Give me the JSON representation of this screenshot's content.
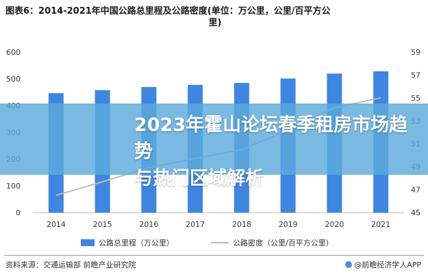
{
  "title": {
    "line1": "图表6：2014-2021年中国公路总里程及公路密度(单位：万公里，公里/百平方公",
    "line2": "里)"
  },
  "banner": {
    "line1": "2023年霍山论坛春季租房市场趋势",
    "line2": "与热门区域解析"
  },
  "footer": {
    "source": "资料来源：交通运输部 前瞻产业研究院",
    "brand": "@前瞻经济学人APP"
  },
  "colors": {
    "bar": "#3f86e0",
    "line": "#bbbbbb",
    "banner": "#5baadc"
  },
  "chart_data": {
    "type": "bar",
    "categories": [
      "2014",
      "2015",
      "2016",
      "2017",
      "2018",
      "2019",
      "2020",
      "2021"
    ],
    "series": [
      {
        "name": "公路总里程（万公里）",
        "type": "bar",
        "axis": "left",
        "values": [
          446.39,
          457.73,
          469.63,
          477.35,
          484.65,
          501.25,
          519.81,
          528.07
        ]
      },
      {
        "name": "公路密度（公里/百平方公里）",
        "type": "line",
        "axis": "right",
        "values": [
          46.5,
          47.68,
          48.92,
          49.72,
          50.48,
          52.21,
          54.15,
          55.01
        ]
      }
    ],
    "ylim_left": [
      0,
      600
    ],
    "yticks_left": [
      "0",
      "100",
      "200",
      "300",
      "400",
      "500",
      "600"
    ],
    "ylim_right": [
      45,
      59
    ],
    "yticks_right": [
      "45",
      "47",
      "49",
      "51",
      "53",
      "55",
      "57",
      "59"
    ],
    "legend_position": "bottom",
    "grid": false
  }
}
